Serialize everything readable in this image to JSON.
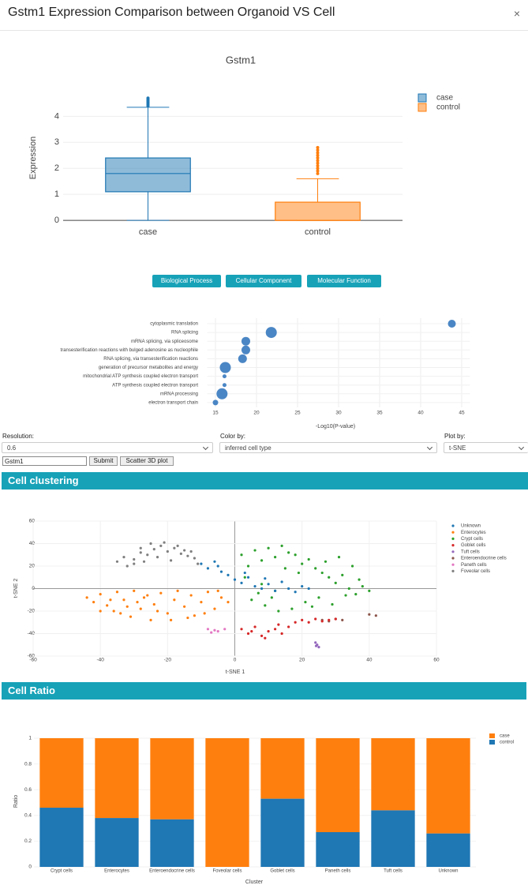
{
  "header": {
    "title": "Gstm1 Expression Comparison between Organoid VS Cell",
    "close": "×"
  },
  "go_buttons": [
    "Biological Process",
    "Cellular Component",
    "Molecular Function"
  ],
  "form": {
    "resolution_label": "Resolution:",
    "resolution": "0.6",
    "color_label": "Color by:",
    "color": "inferred cell type",
    "plot_label": "Plot by:",
    "plot": "t-SNE",
    "gene": "Gstm1",
    "submit": "Submit",
    "scatter3d": "Scatter 3D plot"
  },
  "sections": [
    "Cell clustering",
    "Cell Ratio"
  ],
  "chart_data": [
    {
      "type": "box",
      "title": "Gstm1",
      "ylabel": "Expression",
      "categories": [
        "case",
        "control"
      ],
      "series": [
        {
          "name": "case",
          "color": "#1f77b4",
          "min": 0,
          "q1": 1.1,
          "median": 1.8,
          "q3": 2.4,
          "max": 4.35,
          "outliers": [
            4.4,
            4.45,
            4.5,
            4.55,
            4.6,
            4.65,
            4.7
          ]
        },
        {
          "name": "control",
          "color": "#ff7f0e",
          "min": 0,
          "q1": 0,
          "median": 0,
          "q3": 0.7,
          "max": 1.6,
          "outliers": [
            1.8,
            1.9,
            2.0,
            2.1,
            2.2,
            2.3,
            2.4,
            2.5,
            2.6,
            2.7,
            2.8
          ]
        }
      ],
      "ylim": [
        -0.3,
        4.8
      ],
      "yticks": [
        0,
        1,
        2,
        3,
        4
      ],
      "grid": true
    },
    {
      "type": "bubble",
      "xlabel": "-Log10(P-value)",
      "color": "#4a86c5",
      "categories": [
        "cytoplasmic translation",
        "RNA splicing",
        "mRNA splicing, via spliceosome",
        "transesterification reactions with bulged adenosine as nucleophile",
        "RNA splicing, via transesterification reactions",
        "generation of precursor metabolites and energy",
        "mitochondrial ATP synthesis coupled electron transport",
        "ATP synthesis coupled electron transport",
        "mRNA processing",
        "electron transport chain"
      ],
      "values": [
        43.8,
        21.8,
        18.7,
        18.7,
        18.3,
        16.2,
        16.1,
        16.1,
        15.8,
        15.0
      ],
      "sizes": [
        10,
        14,
        11,
        11,
        11,
        14,
        5,
        5,
        14,
        7
      ],
      "xlim": [
        14,
        46
      ],
      "xticks": [
        15,
        20,
        25,
        30,
        35,
        40,
        45
      ],
      "grid": true
    },
    {
      "type": "scatter",
      "xlabel": "t-SNE 1",
      "ylabel": "t-SNE 2",
      "series": [
        {
          "name": "Unknown",
          "color": "#1f77b4",
          "x": [
            -10,
            -8,
            -6,
            -4,
            -2,
            0,
            2,
            4,
            6,
            8,
            10,
            12,
            14,
            16,
            18,
            20,
            22,
            -5,
            3,
            9
          ],
          "y": [
            22,
            18,
            24,
            15,
            12,
            8,
            5,
            10,
            2,
            0,
            4,
            -2,
            6,
            0,
            -3,
            2,
            0,
            20,
            14,
            9
          ]
        },
        {
          "name": "Enterocytes",
          "color": "#ff7f0e",
          "x": [
            -44,
            -42,
            -40,
            -38,
            -36,
            -35,
            -33,
            -31,
            -30,
            -28,
            -27,
            -25,
            -24,
            -22,
            -20,
            -18,
            -17,
            -15,
            -13,
            -12,
            -10,
            -8,
            -6,
            -4,
            -2,
            -40,
            -34,
            -29,
            -23,
            -19,
            -14,
            -9,
            -5,
            -26,
            -32,
            -37
          ],
          "y": [
            -8,
            -12,
            -5,
            -15,
            -20,
            -3,
            -10,
            -25,
            -2,
            -18,
            -8,
            -28,
            -14,
            -4,
            -22,
            -10,
            -2,
            -16,
            -6,
            -24,
            -12,
            -3,
            -18,
            -8,
            -12,
            -20,
            -22,
            -12,
            -20,
            -28,
            -26,
            -22,
            -2,
            -6,
            -16,
            -10
          ]
        },
        {
          "name": "Crypt cells",
          "color": "#2ca02c",
          "x": [
            2,
            4,
            6,
            8,
            10,
            12,
            14,
            16,
            18,
            20,
            22,
            24,
            26,
            28,
            30,
            32,
            34,
            36,
            38,
            40,
            5,
            9,
            13,
            17,
            21,
            25,
            29,
            33,
            37,
            3,
            7,
            11,
            15,
            19,
            23,
            27,
            31,
            35,
            8,
            12
          ],
          "y": [
            30,
            20,
            34,
            25,
            36,
            28,
            38,
            32,
            30,
            22,
            26,
            18,
            14,
            10,
            5,
            12,
            0,
            -5,
            2,
            -2,
            -10,
            -15,
            -20,
            -18,
            -12,
            -8,
            -14,
            -6,
            8,
            10,
            -4,
            -8,
            18,
            14,
            -16,
            24,
            28,
            20,
            4,
            -2
          ]
        },
        {
          "name": "Goblet cells",
          "color": "#d62728",
          "x": [
            2,
            4,
            6,
            8,
            10,
            12,
            14,
            16,
            5,
            9,
            13,
            18,
            20,
            22,
            24,
            26,
            28,
            30
          ],
          "y": [
            -36,
            -40,
            -34,
            -42,
            -38,
            -36,
            -40,
            -34,
            -38,
            -44,
            -32,
            -30,
            -28,
            -30,
            -27,
            -29,
            -28,
            -27
          ]
        },
        {
          "name": "Tuft cells",
          "color": "#9467bd",
          "x": [
            24,
            24.5,
            25,
            24.2
          ],
          "y": [
            -48,
            -50,
            -52,
            -51
          ]
        },
        {
          "name": "Enteroendocrine cells",
          "color": "#8c564b",
          "x": [
            26,
            28,
            30,
            32,
            40,
            42
          ],
          "y": [
            -28,
            -29,
            -27,
            -28,
            -23,
            -24
          ]
        },
        {
          "name": "Paneth cells",
          "color": "#e377c2",
          "x": [
            -8,
            -6,
            -5,
            -3,
            -7
          ],
          "y": [
            -36,
            -37,
            -38,
            -36,
            -39
          ]
        },
        {
          "name": "Foveolar cells",
          "color": "#7f7f7f",
          "x": [
            -35,
            -33,
            -30,
            -28,
            -26,
            -24,
            -22,
            -20,
            -18,
            -16,
            -14,
            -12,
            -30,
            -27,
            -23,
            -19,
            -15,
            -25,
            -21,
            -17,
            -13,
            -32,
            -28,
            -11
          ],
          "y": [
            24,
            28,
            26,
            32,
            30,
            35,
            38,
            33,
            36,
            31,
            29,
            27,
            22,
            24,
            28,
            25,
            34,
            40,
            41,
            38,
            33,
            20,
            36,
            22
          ]
        }
      ],
      "xlim": [
        -60,
        60
      ],
      "xticks": [
        -60,
        -40,
        -20,
        0,
        20,
        40,
        60
      ],
      "ylim": [
        -60,
        60
      ],
      "yticks": [
        -60,
        -40,
        -20,
        0,
        20,
        40,
        60
      ],
      "grid": true
    },
    {
      "type": "stacked_bar",
      "xlabel": "Cluster",
      "ylabel": "Ratio",
      "categories": [
        "Crypt cells",
        "Enterocytes",
        "Enteroendocrine cells",
        "Foveolar cells",
        "Goblet cells",
        "Paneth cells",
        "Tuft cells",
        "Unknown"
      ],
      "series": [
        {
          "name": "case",
          "color": "#ff7f0e",
          "values": [
            0.54,
            0.62,
            0.63,
            1,
            0.47,
            0.73,
            0.56,
            0.74
          ]
        },
        {
          "name": "control",
          "color": "#1f77b4",
          "values": [
            0.46,
            0.38,
            0.37,
            0,
            0.53,
            0.27,
            0.44,
            0.26
          ]
        }
      ],
      "ylim": [
        0,
        1
      ],
      "yticks": [
        0,
        0.2,
        0.4,
        0.6,
        0.8,
        1
      ],
      "grid": true
    }
  ]
}
